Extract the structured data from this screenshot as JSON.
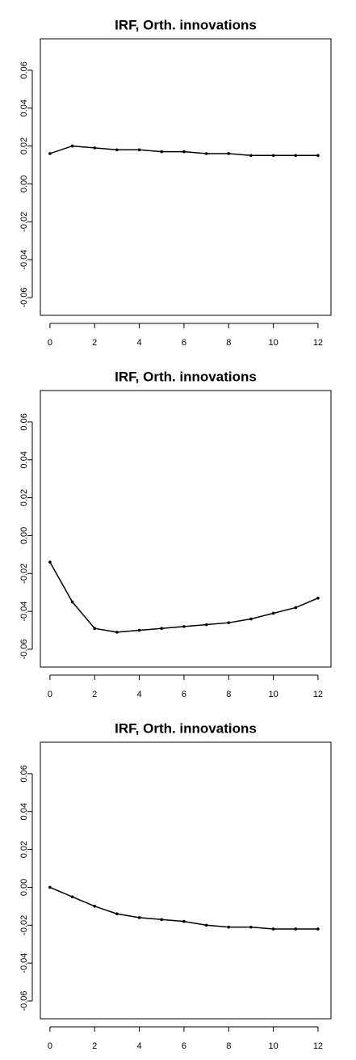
{
  "chart_data": [
    {
      "type": "line",
      "title": "IRF, Orth. innovations",
      "x": [
        0,
        1,
        2,
        3,
        4,
        5,
        6,
        7,
        8,
        9,
        10,
        11,
        12
      ],
      "values": [
        0.016,
        0.02,
        0.019,
        0.018,
        0.018,
        0.017,
        0.017,
        0.016,
        0.016,
        0.015,
        0.015,
        0.015,
        0.015
      ],
      "color": "#000000",
      "xlim": [
        -0.43,
        12.58
      ],
      "ylim": [
        -0.0694,
        0.0766
      ],
      "xticks": [
        0,
        2,
        4,
        6,
        8,
        10,
        12
      ],
      "yticks": [
        -0.06,
        -0.04,
        -0.02,
        {
          "value": 0,
          "label": "0.00"
        },
        0.02,
        0.04,
        0.06
      ]
    },
    {
      "type": "line",
      "title": "IRF, Orth. innovations",
      "x": [
        0,
        1,
        2,
        3,
        4,
        5,
        6,
        7,
        8,
        9,
        10,
        11,
        12
      ],
      "values": [
        -0.014,
        -0.035,
        -0.049,
        -0.051,
        -0.05,
        -0.049,
        -0.048,
        -0.047,
        -0.046,
        -0.044,
        -0.041,
        -0.038,
        -0.033
      ],
      "color": "#000000",
      "xlim": [
        -0.43,
        12.58
      ],
      "ylim": [
        -0.0694,
        0.0766
      ],
      "xticks": [
        0,
        2,
        4,
        6,
        8,
        10,
        12
      ],
      "yticks": [
        -0.06,
        -0.04,
        -0.02,
        {
          "value": 0,
          "label": "0.00"
        },
        0.02,
        0.04,
        0.06
      ]
    },
    {
      "type": "line",
      "title": "IRF, Orth. innovations",
      "x": [
        0,
        1,
        2,
        3,
        4,
        5,
        6,
        7,
        8,
        9,
        10,
        11,
        12
      ],
      "values": [
        0.0,
        -0.005,
        -0.01,
        -0.014,
        -0.016,
        -0.017,
        -0.018,
        -0.02,
        -0.021,
        -0.021,
        -0.022,
        -0.022,
        -0.022
      ],
      "color": "#000000",
      "xlim": [
        -0.43,
        12.58
      ],
      "ylim": [
        -0.0694,
        0.0766
      ],
      "xticks": [
        0,
        2,
        4,
        6,
        8,
        10,
        12
      ],
      "yticks": [
        -0.06,
        -0.04,
        -0.02,
        {
          "value": 0,
          "label": "0.00"
        },
        0.02,
        0.04,
        0.06
      ]
    }
  ]
}
